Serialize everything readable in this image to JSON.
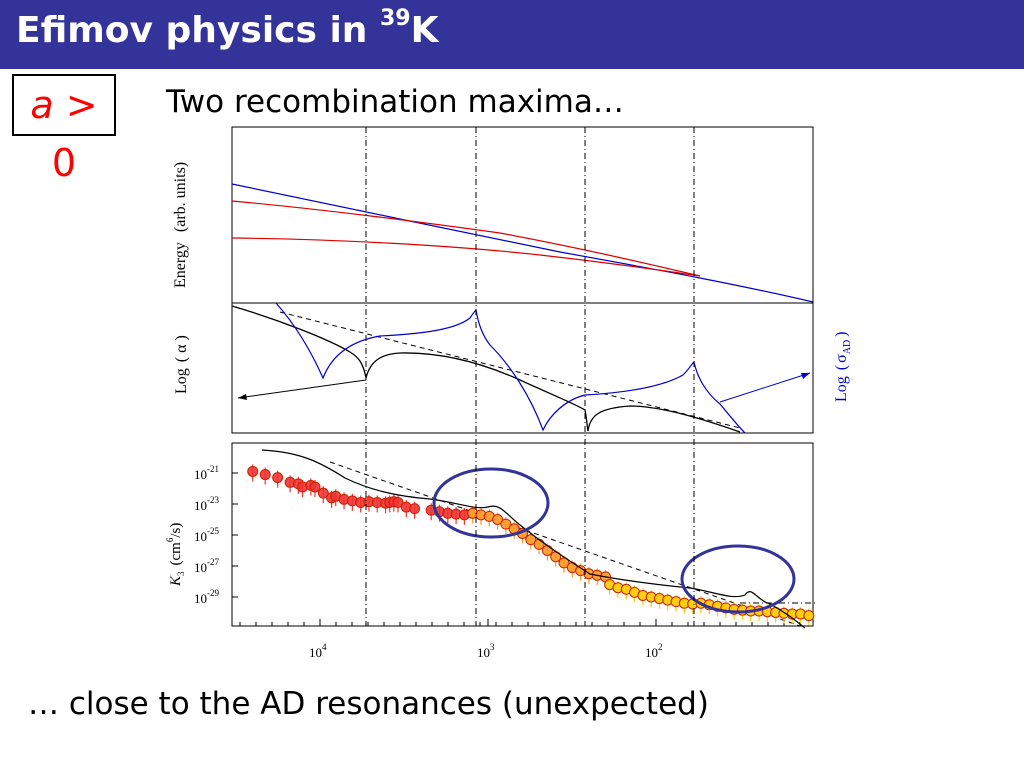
{
  "slide": {
    "title_main": "Efimov physics in ",
    "title_sup": "39",
    "title_end": "K",
    "a_italic": "a",
    "a_rest": " > 0",
    "subtitle": "Two recombination maxima…",
    "footer": "… close to the AD resonances (unexpected)"
  },
  "colors": {
    "title_bar": "#333399",
    "red": "#dd0000",
    "blue": "#0000cc",
    "data_red": "#ee3333",
    "data_orange": "#ff9922",
    "data_yellow": "#ffcc00",
    "circle": "#333399"
  },
  "chart_data": [
    {
      "type": "line",
      "panel": "energy",
      "ylabel_main": "Energy",
      "ylabel_unit": "(arb. units)",
      "series": [
        {
          "color": "blue",
          "x": [
            0,
            0.2,
            0.45,
            0.7,
            1.0
          ],
          "y": [
            0.67,
            0.54,
            0.4,
            0.27,
            0.12
          ]
        },
        {
          "color": "red",
          "x": [
            0,
            0.2,
            0.4,
            0.7
          ],
          "y": [
            0.57,
            0.51,
            0.43,
            0.28
          ]
        },
        {
          "color": "red",
          "x": [
            0,
            0.2,
            0.4,
            0.7
          ],
          "y": [
            0.36,
            0.35,
            0.31,
            0.28
          ]
        }
      ]
    },
    {
      "type": "line",
      "panel": "log-alpha",
      "ylabel_left_main": "Log",
      "ylabel_left_greek": "α",
      "ylabel_right_main": "Log",
      "ylabel_right_greek": "σ",
      "ylabel_right_sub": "AD"
    },
    {
      "type": "scatter",
      "panel": "K3",
      "ylabel_k": "K",
      "ylabel_sub": "3",
      "ylabel_unit": "(cm",
      "ylabel_exp": "6",
      "ylabel_end": "/s)",
      "ytick_base": "10",
      "yticks": [
        "-21",
        "-23",
        "-25",
        "-27",
        "-29"
      ],
      "xtick_base": "10",
      "xticks": [
        "4",
        "3",
        "2"
      ],
      "series": [
        {
          "name": "",
          "color": "data_red",
          "x": [
            0.05,
            0.08,
            0.11,
            0.14,
            0.16,
            0.17,
            0.19,
            0.2,
            0.22,
            0.24,
            0.25,
            0.27,
            0.29,
            0.31,
            0.33,
            0.35,
            0.37,
            0.38,
            0.39,
            0.4,
            0.42,
            0.44,
            0.48,
            0.5,
            0.52,
            0.54,
            0.56
          ],
          "y": [
            -20.9,
            -21.1,
            -21.3,
            -21.6,
            -21.7,
            -21.9,
            -21.8,
            -21.9,
            -22.3,
            -22.6,
            -22.5,
            -22.7,
            -22.8,
            -22.9,
            -22.85,
            -22.9,
            -22.95,
            -22.9,
            -22.85,
            -22.9,
            -23.2,
            -23.3,
            -23.4,
            -23.5,
            -23.6,
            -23.65,
            -23.7
          ]
        },
        {
          "name": "",
          "color": "data_orange",
          "x": [
            0.58,
            0.6,
            0.62,
            0.64,
            0.66,
            0.68,
            0.7,
            0.72,
            0.74,
            0.76,
            0.78,
            0.8,
            0.82,
            0.84,
            0.86,
            0.88,
            0.9
          ],
          "y": [
            -23.6,
            -23.7,
            -23.8,
            -24.0,
            -24.3,
            -24.6,
            -24.9,
            -25.3,
            -25.6,
            -26.0,
            -26.4,
            -26.8,
            -27.1,
            -27.3,
            -27.5,
            -27.6,
            -27.7
          ]
        },
        {
          "name": "",
          "color": "data_yellow",
          "x": [
            0.91,
            0.93,
            0.95,
            0.97,
            0.99,
            1.01,
            1.03,
            1.05,
            1.07,
            1.09,
            1.11,
            1.13,
            1.15,
            1.17,
            1.19,
            1.21,
            1.23,
            1.25,
            1.27,
            1.29,
            1.31,
            1.33,
            1.35,
            1.37,
            1.39
          ],
          "y": [
            -28.2,
            -28.4,
            -28.5,
            -28.7,
            -28.9,
            -29.0,
            -29.1,
            -29.2,
            -29.3,
            -29.4,
            -29.45,
            -29.4,
            -29.5,
            -29.6,
            -29.7,
            -29.8,
            -29.85,
            -29.9,
            -29.9,
            -29.95,
            -30.0,
            -30.05,
            -30.1,
            -30.1,
            -30.2
          ]
        }
      ]
    }
  ]
}
